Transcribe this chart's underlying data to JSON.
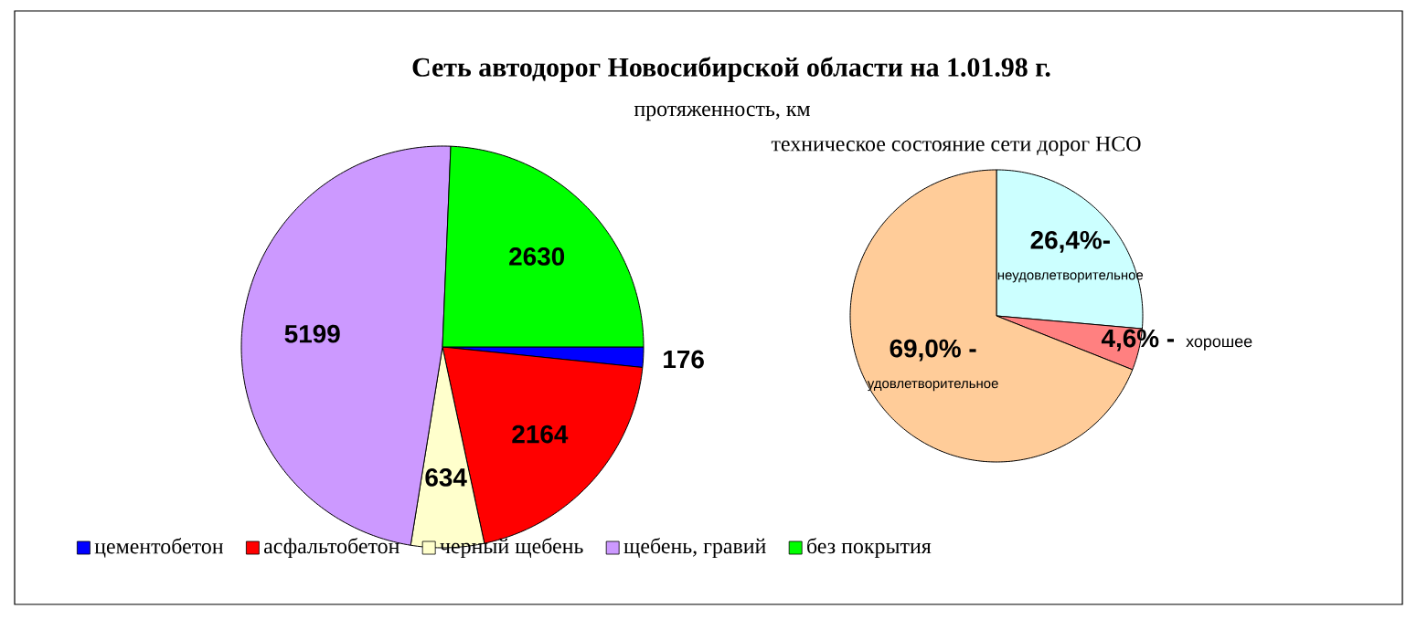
{
  "chart_data": [
    {
      "type": "pie",
      "title": "Сеть автодорог Новосибирской области на 1.01.98 г.",
      "subtitle": "протяженность, км",
      "categories": [
        "цементобетон",
        "асфальтобетон",
        "черный щебень",
        "щебень, гравий",
        "без покрытия"
      ],
      "values": [
        176,
        2164,
        634,
        5199,
        2630
      ],
      "colors": [
        "#0000ff",
        "#ff0000",
        "#ffffcc",
        "#cc99ff",
        "#00ff00"
      ],
      "data_labels": true,
      "legend": "bottom"
    },
    {
      "type": "pie",
      "title": "техническое состояние сети дорог НСО",
      "categories": [
        "неудовлетворительное",
        "хорошее",
        "удовлетворительное"
      ],
      "values": [
        26.4,
        4.6,
        69.0
      ],
      "value_labels": [
        "26,4%-",
        "4,6% -",
        "69,0% -"
      ],
      "colors": [
        "#ccffff",
        "#ff8080",
        "#ffcc99"
      ]
    }
  ]
}
